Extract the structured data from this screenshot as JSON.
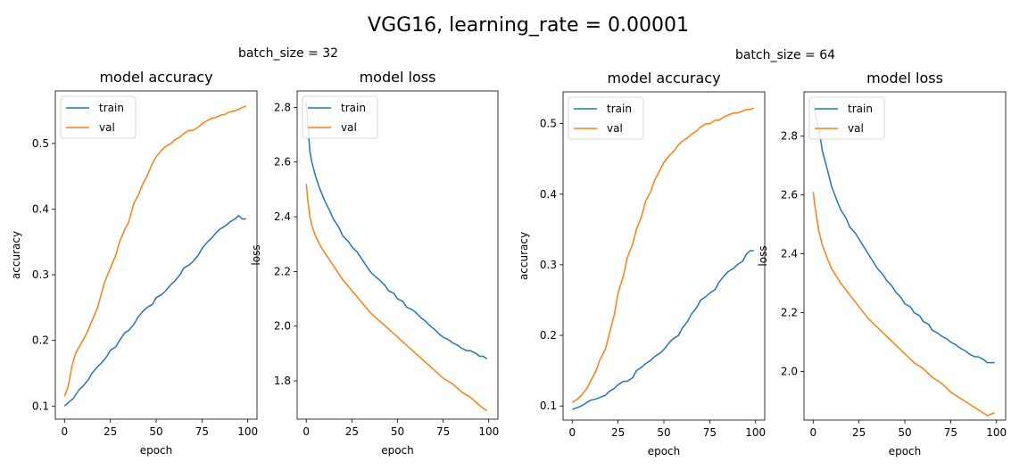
{
  "figure": {
    "suptitle": "VGG16, learning_rate = 0.00001",
    "groups": [
      {
        "title": "batch_size = 32"
      },
      {
        "title": "batch_size = 64"
      }
    ],
    "colors": {
      "train": "#1f77b4",
      "val": "#ff7f0e"
    }
  },
  "chart_data": [
    {
      "type": "line",
      "title": "model accuracy",
      "xlabel": "epoch",
      "ylabel": "accuracy",
      "xlim": [
        -5,
        105
      ],
      "ylim": [
        0.08,
        0.58
      ],
      "xticks": [
        0,
        25,
        50,
        75,
        100
      ],
      "xtick_labels": [
        "0",
        "25",
        "50",
        "75",
        "100"
      ],
      "yticks": [
        0.1,
        0.2,
        0.3,
        0.4,
        0.5
      ],
      "ytick_labels": [
        "0.1",
        "0.2",
        "0.3",
        "0.4",
        "0.5"
      ],
      "legend": "upper-left",
      "grid": false,
      "series": [
        {
          "name": "train",
          "color": "#1f77b4",
          "x": [
            0,
            2,
            5,
            8,
            10,
            13,
            15,
            18,
            20,
            23,
            25,
            28,
            30,
            33,
            35,
            38,
            40,
            43,
            45,
            48,
            50,
            53,
            55,
            58,
            60,
            63,
            65,
            68,
            70,
            73,
            75,
            78,
            80,
            83,
            85,
            88,
            90,
            93,
            95,
            97,
            99
          ],
          "y": [
            0.1,
            0.105,
            0.112,
            0.125,
            0.13,
            0.14,
            0.15,
            0.16,
            0.165,
            0.175,
            0.185,
            0.19,
            0.2,
            0.212,
            0.215,
            0.225,
            0.235,
            0.245,
            0.25,
            0.255,
            0.265,
            0.27,
            0.275,
            0.285,
            0.29,
            0.3,
            0.31,
            0.315,
            0.32,
            0.33,
            0.34,
            0.35,
            0.355,
            0.365,
            0.37,
            0.375,
            0.38,
            0.385,
            0.39,
            0.385,
            0.385
          ]
        },
        {
          "name": "val",
          "color": "#ff7f0e",
          "x": [
            0,
            2,
            4,
            6,
            8,
            10,
            12,
            15,
            18,
            20,
            22,
            25,
            28,
            30,
            33,
            35,
            38,
            40,
            43,
            45,
            48,
            50,
            53,
            55,
            58,
            60,
            63,
            65,
            68,
            70,
            73,
            75,
            78,
            80,
            83,
            85,
            88,
            90,
            93,
            95,
            97,
            99
          ],
          "y": [
            0.115,
            0.13,
            0.16,
            0.18,
            0.19,
            0.2,
            0.21,
            0.23,
            0.25,
            0.27,
            0.29,
            0.31,
            0.33,
            0.35,
            0.37,
            0.38,
            0.41,
            0.42,
            0.44,
            0.45,
            0.47,
            0.48,
            0.49,
            0.495,
            0.5,
            0.505,
            0.51,
            0.515,
            0.52,
            0.52,
            0.525,
            0.53,
            0.535,
            0.538,
            0.54,
            0.543,
            0.545,
            0.548,
            0.55,
            0.552,
            0.555,
            0.557
          ]
        }
      ]
    },
    {
      "type": "line",
      "title": "model loss",
      "xlabel": "epoch",
      "ylabel": "loss",
      "xlim": [
        -5,
        105
      ],
      "ylim": [
        1.66,
        2.86
      ],
      "xticks": [
        0,
        25,
        50,
        75,
        100
      ],
      "xtick_labels": [
        "0",
        "25",
        "50",
        "75",
        "100"
      ],
      "yticks": [
        1.8,
        2.0,
        2.2,
        2.4,
        2.6,
        2.8
      ],
      "ytick_labels": [
        "1.8",
        "2.0",
        "2.2",
        "2.4",
        "2.6",
        "2.8"
      ],
      "legend": "upper-left",
      "grid": false,
      "series": [
        {
          "name": "train",
          "color": "#1f77b4",
          "x": [
            0,
            1,
            2,
            3,
            5,
            7,
            10,
            13,
            15,
            18,
            20,
            23,
            25,
            28,
            30,
            33,
            35,
            38,
            40,
            43,
            45,
            48,
            50,
            53,
            55,
            58,
            60,
            63,
            65,
            68,
            70,
            73,
            75,
            78,
            80,
            83,
            85,
            88,
            90,
            93,
            95,
            97,
            99
          ],
          "y": [
            2.82,
            2.72,
            2.64,
            2.6,
            2.55,
            2.51,
            2.46,
            2.42,
            2.39,
            2.36,
            2.33,
            2.31,
            2.29,
            2.27,
            2.25,
            2.22,
            2.2,
            2.18,
            2.17,
            2.15,
            2.13,
            2.12,
            2.1,
            2.09,
            2.07,
            2.06,
            2.05,
            2.03,
            2.02,
            2.0,
            1.99,
            1.97,
            1.96,
            1.95,
            1.94,
            1.93,
            1.92,
            1.91,
            1.91,
            1.9,
            1.89,
            1.89,
            1.88
          ]
        },
        {
          "name": "val",
          "color": "#ff7f0e",
          "x": [
            0,
            1,
            2,
            3,
            5,
            8,
            10,
            15,
            20,
            25,
            30,
            35,
            40,
            45,
            50,
            55,
            60,
            65,
            70,
            75,
            80,
            85,
            90,
            95,
            99
          ],
          "y": [
            2.52,
            2.45,
            2.4,
            2.37,
            2.33,
            2.29,
            2.27,
            2.22,
            2.17,
            2.13,
            2.09,
            2.05,
            2.02,
            1.99,
            1.96,
            1.93,
            1.9,
            1.87,
            1.84,
            1.81,
            1.79,
            1.76,
            1.74,
            1.71,
            1.69
          ]
        }
      ]
    },
    {
      "type": "line",
      "title": "model accuracy",
      "xlabel": "epoch",
      "ylabel": "accuracy",
      "xlim": [
        -5,
        105
      ],
      "ylim": [
        0.08,
        0.545
      ],
      "xticks": [
        0,
        25,
        50,
        75,
        100
      ],
      "xtick_labels": [
        "0",
        "25",
        "50",
        "75",
        "100"
      ],
      "yticks": [
        0.1,
        0.2,
        0.3,
        0.4,
        0.5
      ],
      "ytick_labels": [
        "0.1",
        "0.2",
        "0.3",
        "0.4",
        "0.5"
      ],
      "legend": "upper-left",
      "grid": false,
      "series": [
        {
          "name": "train",
          "color": "#1f77b4",
          "x": [
            0,
            3,
            5,
            8,
            10,
            13,
            15,
            18,
            20,
            23,
            25,
            28,
            30,
            33,
            35,
            38,
            40,
            43,
            45,
            48,
            50,
            53,
            55,
            58,
            60,
            63,
            65,
            68,
            70,
            73,
            75,
            78,
            80,
            83,
            85,
            88,
            90,
            93,
            95,
            97,
            99
          ],
          "y": [
            0.095,
            0.098,
            0.1,
            0.105,
            0.108,
            0.11,
            0.112,
            0.115,
            0.12,
            0.125,
            0.13,
            0.135,
            0.135,
            0.14,
            0.15,
            0.155,
            0.16,
            0.165,
            0.17,
            0.175,
            0.18,
            0.19,
            0.195,
            0.2,
            0.21,
            0.22,
            0.23,
            0.24,
            0.25,
            0.255,
            0.26,
            0.265,
            0.275,
            0.285,
            0.29,
            0.295,
            0.3,
            0.305,
            0.315,
            0.32,
            0.32
          ]
        },
        {
          "name": "val",
          "color": "#ff7f0e",
          "x": [
            0,
            3,
            5,
            8,
            10,
            13,
            15,
            18,
            20,
            23,
            25,
            28,
            30,
            33,
            35,
            38,
            40,
            43,
            45,
            48,
            50,
            53,
            55,
            58,
            60,
            63,
            65,
            68,
            70,
            73,
            75,
            78,
            80,
            83,
            85,
            88,
            90,
            93,
            95,
            97,
            99
          ],
          "y": [
            0.105,
            0.11,
            0.115,
            0.125,
            0.135,
            0.15,
            0.165,
            0.18,
            0.2,
            0.23,
            0.26,
            0.285,
            0.31,
            0.33,
            0.35,
            0.37,
            0.39,
            0.405,
            0.42,
            0.435,
            0.445,
            0.455,
            0.46,
            0.47,
            0.475,
            0.48,
            0.485,
            0.49,
            0.495,
            0.5,
            0.5,
            0.505,
            0.505,
            0.51,
            0.512,
            0.515,
            0.515,
            0.518,
            0.52,
            0.52,
            0.522
          ]
        }
      ]
    },
    {
      "type": "line",
      "title": "model loss",
      "xlabel": "epoch",
      "ylabel": "loss",
      "xlim": [
        -5,
        105
      ],
      "ylim": [
        1.835,
        2.95
      ],
      "xticks": [
        0,
        25,
        50,
        75,
        100
      ],
      "xtick_labels": [
        "0",
        "25",
        "50",
        "75",
        "100"
      ],
      "yticks": [
        2.0,
        2.2,
        2.4,
        2.6,
        2.8
      ],
      "ytick_labels": [
        "2.0",
        "2.2",
        "2.4",
        "2.6",
        "2.8"
      ],
      "legend": "upper-left",
      "grid": false,
      "series": [
        {
          "name": "train",
          "color": "#1f77b4",
          "x": [
            0,
            2,
            4,
            5,
            8,
            10,
            13,
            15,
            18,
            20,
            23,
            25,
            28,
            30,
            33,
            35,
            38,
            40,
            43,
            45,
            48,
            50,
            53,
            55,
            58,
            60,
            63,
            65,
            68,
            70,
            73,
            75,
            78,
            80,
            83,
            85,
            88,
            90,
            93,
            95,
            97,
            99
          ],
          "y": [
            2.91,
            2.85,
            2.79,
            2.75,
            2.68,
            2.63,
            2.58,
            2.55,
            2.52,
            2.49,
            2.47,
            2.45,
            2.42,
            2.4,
            2.37,
            2.35,
            2.33,
            2.31,
            2.29,
            2.27,
            2.25,
            2.23,
            2.22,
            2.2,
            2.19,
            2.17,
            2.16,
            2.14,
            2.13,
            2.12,
            2.11,
            2.1,
            2.09,
            2.08,
            2.07,
            2.06,
            2.05,
            2.05,
            2.04,
            2.03,
            2.03,
            2.03
          ]
        },
        {
          "name": "val",
          "color": "#ff7f0e",
          "x": [
            0,
            1,
            2,
            3,
            5,
            8,
            10,
            15,
            20,
            25,
            30,
            35,
            40,
            45,
            50,
            55,
            60,
            65,
            70,
            75,
            80,
            85,
            90,
            95,
            99
          ],
          "y": [
            2.61,
            2.56,
            2.52,
            2.48,
            2.43,
            2.38,
            2.35,
            2.3,
            2.26,
            2.22,
            2.18,
            2.15,
            2.12,
            2.09,
            2.06,
            2.03,
            2.01,
            1.98,
            1.96,
            1.93,
            1.91,
            1.89,
            1.87,
            1.85,
            1.86
          ]
        }
      ]
    }
  ]
}
